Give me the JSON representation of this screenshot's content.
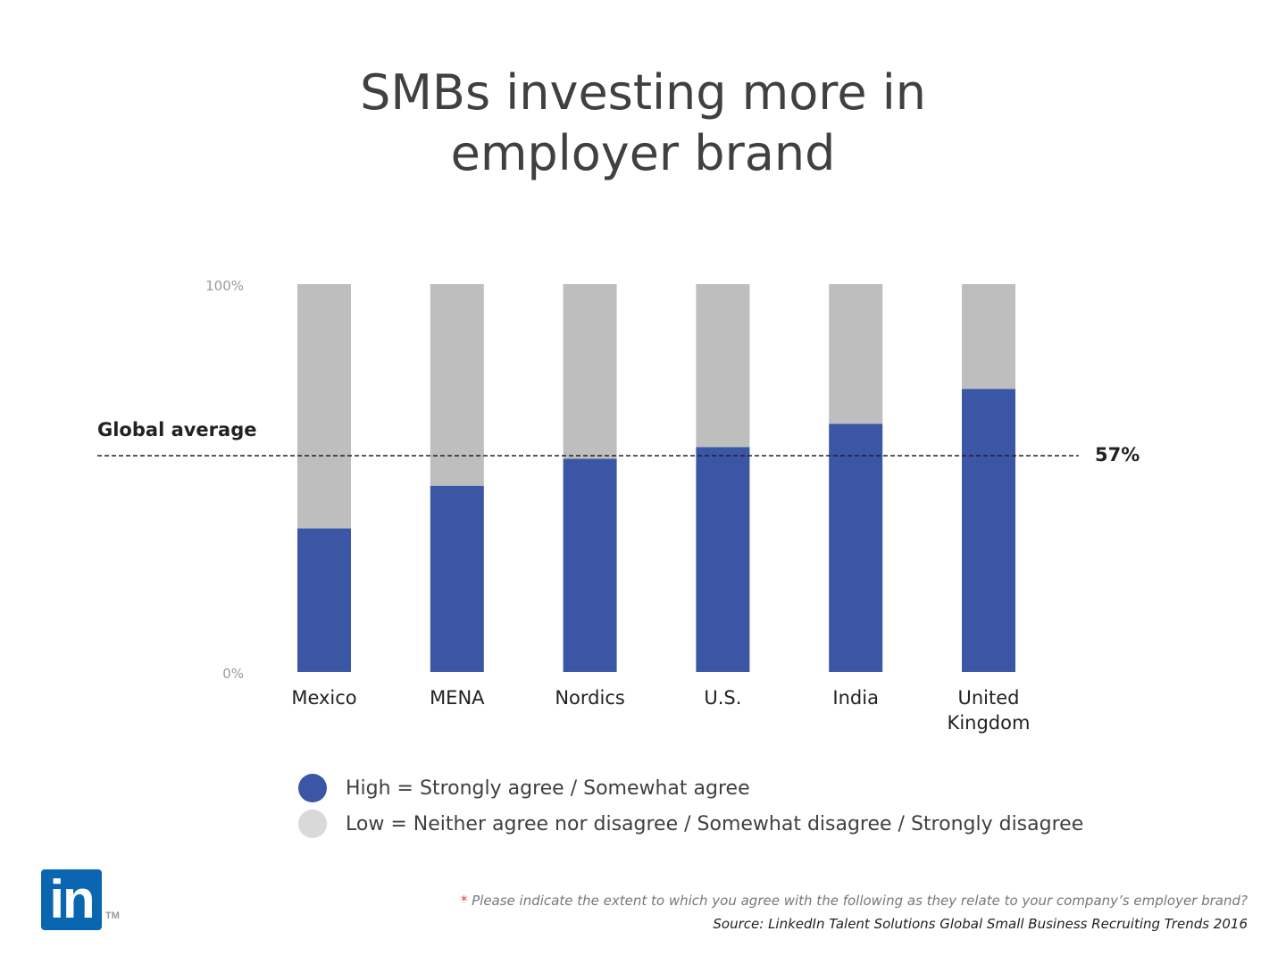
{
  "title_lines": [
    "SMBs investing more in",
    "employer brand"
  ],
  "chart_data": {
    "type": "bar",
    "stacked": true,
    "title": "SMBs investing more in employer brand",
    "categories": [
      "Mexico",
      "MENA",
      "Nordics",
      "U.S.",
      "India",
      "United Kingdom"
    ],
    "category_lines": [
      [
        "Mexico"
      ],
      [
        "MENA"
      ],
      [
        "Nordics"
      ],
      [
        "U.S."
      ],
      [
        "India"
      ],
      [
        "United",
        "Kingdom"
      ]
    ],
    "series": [
      {
        "name": "High = Strongly agree / Somewhat agree",
        "values": [
          37,
          48,
          55,
          58,
          64,
          73
        ],
        "color": "#3a56a5"
      },
      {
        "name": "Low = Neither agree nor disagree / Somewhat disagree / Strongly disagree",
        "values": [
          63,
          52,
          45,
          42,
          36,
          27
        ],
        "color": "#bebebe"
      }
    ],
    "ylim": [
      0,
      100
    ],
    "y_ticks": [
      {
        "value": 0,
        "label": "0%"
      },
      {
        "value": 100,
        "label": "100%"
      }
    ],
    "reference_line": {
      "label": "Global average",
      "value": 57,
      "value_label": "57%"
    },
    "grid": false,
    "legend_position": "bottom"
  },
  "legend": [
    {
      "label": "High = Strongly agree / Somewhat agree",
      "color": "#3a56a5"
    },
    {
      "label": "Low = Neither agree nor disagree / Somewhat disagree / Strongly disagree",
      "color": "#d9d9d9"
    }
  ],
  "logo": {
    "text": "in",
    "tm": "TM",
    "color": "#0a66b0"
  },
  "footnote": {
    "star": "*",
    "text": " Please indicate the extent to which you agree with the following as they relate to your company’s employer brand?"
  },
  "source": "Source: LinkedIn Talent Solutions Global Small Business Recruiting Trends 2016"
}
